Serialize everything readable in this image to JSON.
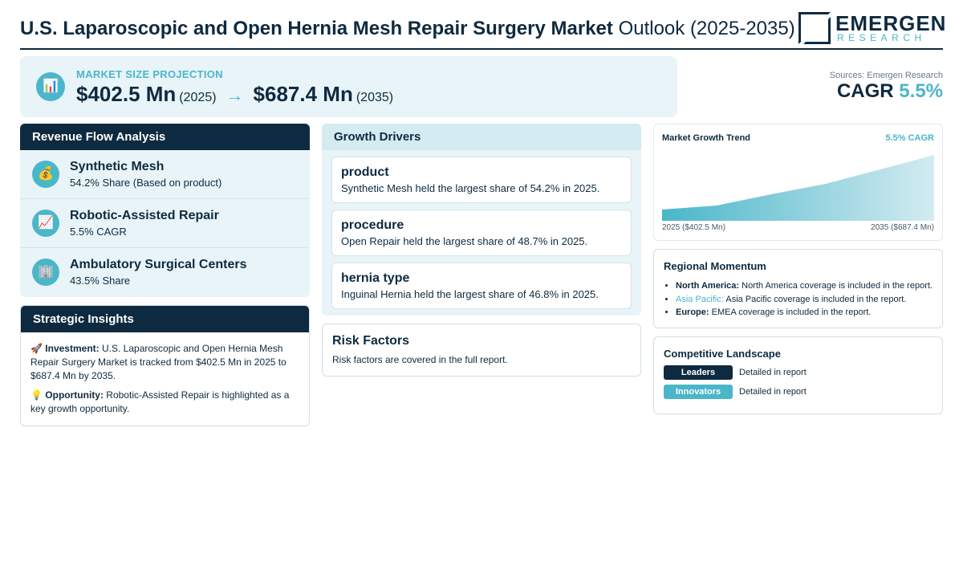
{
  "header": {
    "title_bold": "U.S. Laparoscopic and Open Hernia Mesh Repair Surgery Market",
    "title_light": "Outlook (2025-2035)",
    "logo_word": "EMERGEN",
    "logo_sub": "RESEARCH"
  },
  "projection": {
    "icon": "bar-chart-icon",
    "label": "MARKET SIZE PROJECTION",
    "start_value": "$402.5 Mn",
    "start_year": "(2025)",
    "arrow": "→",
    "end_value": "$687.4 Mn",
    "end_year": "(2035)"
  },
  "summary": {
    "sources": "Sources: Emergen Research",
    "cagr_label": "CAGR",
    "cagr_value": "5.5%"
  },
  "revenue_flow": {
    "title": "Revenue Flow Analysis",
    "items": [
      {
        "icon": "money-bag-icon",
        "glyph": "💰",
        "title": "Synthetic Mesh",
        "sub": "54.2% Share (Based on product)"
      },
      {
        "icon": "trend-chart-icon",
        "glyph": "📈",
        "title": "Robotic-Assisted Repair",
        "sub": "5.5% CAGR"
      },
      {
        "icon": "building-icon",
        "glyph": "🏢",
        "title": "Ambulatory Surgical Centers",
        "sub": "43.5% Share"
      }
    ]
  },
  "insights": {
    "title": "Strategic Insights",
    "investment_icon": "🚀",
    "investment_label": "Investment:",
    "investment_text": "U.S. Laparoscopic and Open Hernia Mesh Repair Surgery Market is tracked from $402.5 Mn in 2025 to $687.4 Mn by 2035.",
    "opportunity_icon": "💡",
    "opportunity_label": "Opportunity:",
    "opportunity_text": "Robotic-Assisted Repair is highlighted as a key growth opportunity."
  },
  "drivers": {
    "title": "Growth Drivers",
    "items": [
      {
        "title": "product",
        "sub": "Synthetic Mesh held the largest share of 54.2% in 2025."
      },
      {
        "title": "procedure",
        "sub": "Open Repair held the largest share of 48.7% in 2025."
      },
      {
        "title": "hernia type",
        "sub": "Inguinal Hernia held the largest share of 46.8% in 2025."
      }
    ]
  },
  "risk": {
    "title": "Risk Factors",
    "text": "Risk factors are covered in the full report."
  },
  "trend": {
    "title": "Market Growth Trend",
    "cagr": "5.5% CAGR",
    "label_start": "2025 ($402.5 Mn)",
    "label_end": "2035 ($687.4 Mn)"
  },
  "regional": {
    "title": "Regional Momentum",
    "items": [
      {
        "region": "North America:",
        "text": "North America coverage is included in the report."
      },
      {
        "region": "Asia Pacific:",
        "text": "Asia Pacific coverage is included in the report."
      },
      {
        "region": "Europe:",
        "text": "EMEA coverage is included in the report."
      }
    ]
  },
  "competitive": {
    "title": "Competitive Landscape",
    "rows": [
      {
        "badge": "Leaders",
        "text": "Detailed in report"
      },
      {
        "badge": "Innovators",
        "text": "Detailed in report"
      }
    ]
  },
  "colors": {
    "navy": "#0e2a40",
    "teal": "#4ab6c9",
    "panel": "#e8f4f7"
  }
}
